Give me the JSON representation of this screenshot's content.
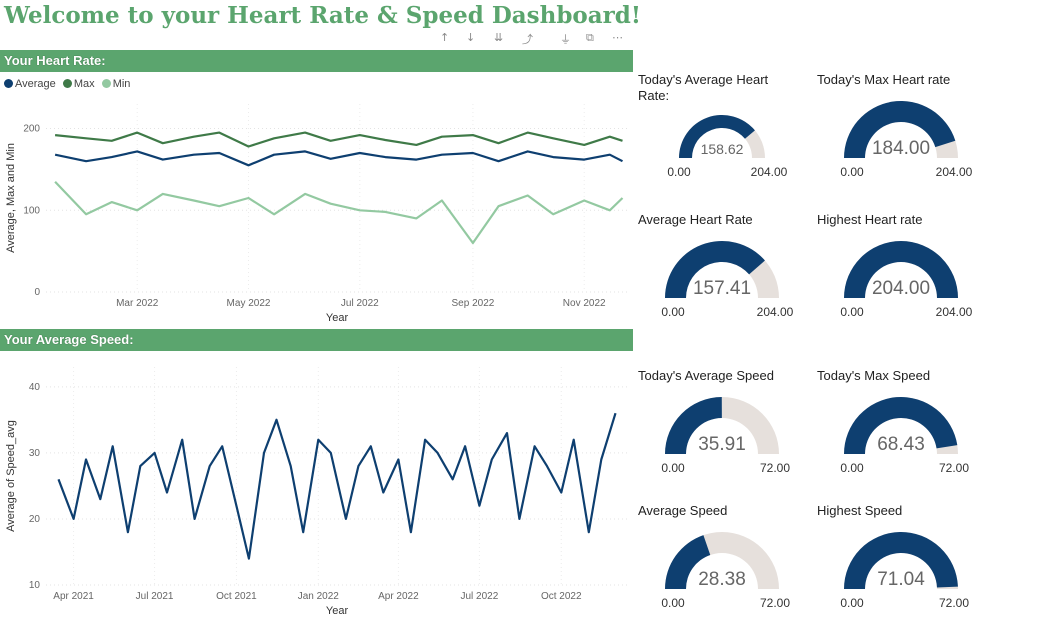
{
  "page": {
    "title": "Welcome to your Heart Rate & Speed Dashboard!"
  },
  "toolbar": {
    "icons": [
      "drill-up-icon",
      "drill-down-icon",
      "expand-all-icon",
      "expand-hierarchy-icon",
      "filter-icon",
      "focus-mode-icon",
      "more-options-icon"
    ],
    "glyphs": [
      "↑",
      "↓",
      "⇊",
      "⤴",
      "⏚",
      "⧉",
      "⋯"
    ]
  },
  "heart_section": {
    "label": "Your Heart Rate:"
  },
  "speed_section": {
    "label": "Your Average Speed:"
  },
  "colors": {
    "accent": "#5ba56e",
    "average": "#0e3f70",
    "max": "#3f7a48",
    "min": "#93c9a1",
    "gauge_fill": "#0e3f70",
    "gauge_track": "#e6e0dc"
  },
  "heart_chart": {
    "legend": [
      {
        "name": "Average",
        "color": "#0e3f70"
      },
      {
        "name": "Max",
        "color": "#3f7a48"
      },
      {
        "name": "Min",
        "color": "#93c9a1"
      }
    ]
  },
  "chart_data": [
    {
      "type": "line",
      "xlabel": "Year",
      "ylabel": "Average, Max and Min",
      "x_ticks": [
        "Mar 2022",
        "May 2022",
        "Jul 2022",
        "Sep 2022",
        "Nov 2022"
      ],
      "y_ticks": [
        0,
        100,
        200
      ],
      "ylim": [
        0,
        230
      ],
      "x_range": [
        "2022-01-10",
        "2022-11-25"
      ],
      "x": [
        "2022-01-15",
        "2022-02-01",
        "2022-02-15",
        "2022-03-01",
        "2022-03-15",
        "2022-04-01",
        "2022-04-15",
        "2022-05-01",
        "2022-05-15",
        "2022-06-01",
        "2022-06-15",
        "2022-07-01",
        "2022-07-15",
        "2022-08-01",
        "2022-08-15",
        "2022-09-01",
        "2022-09-15",
        "2022-10-01",
        "2022-10-15",
        "2022-11-01",
        "2022-11-15",
        "2022-11-22"
      ],
      "series": [
        {
          "name": "Average",
          "color": "#0e3f70",
          "values": [
            168,
            160,
            165,
            172,
            162,
            168,
            170,
            155,
            168,
            172,
            163,
            170,
            165,
            162,
            168,
            170,
            160,
            172,
            165,
            162,
            168,
            160
          ]
        },
        {
          "name": "Max",
          "color": "#3f7a48",
          "values": [
            192,
            188,
            185,
            195,
            182,
            190,
            195,
            178,
            188,
            195,
            185,
            192,
            186,
            180,
            190,
            192,
            182,
            195,
            188,
            180,
            190,
            185
          ]
        },
        {
          "name": "Min",
          "color": "#93c9a1",
          "values": [
            135,
            95,
            110,
            100,
            120,
            112,
            105,
            115,
            95,
            120,
            108,
            100,
            98,
            90,
            112,
            60,
            105,
            118,
            95,
            112,
            100,
            115
          ]
        }
      ],
      "grid": true,
      "legend": "top-left"
    },
    {
      "type": "line",
      "xlabel": "Year",
      "ylabel": "Average of Speed_avg",
      "x_ticks": [
        "Apr 2021",
        "Jul 2021",
        "Oct 2021",
        "Jan 2022",
        "Apr 2022",
        "Jul 2022",
        "Oct 2022"
      ],
      "y_ticks": [
        10,
        20,
        30,
        40
      ],
      "ylim": [
        10,
        43
      ],
      "x_range": [
        "2021-03-01",
        "2022-12-15"
      ],
      "x": [
        "2021-03-15",
        "2021-04-01",
        "2021-04-15",
        "2021-05-01",
        "2021-05-15",
        "2021-06-01",
        "2021-06-15",
        "2021-07-01",
        "2021-07-15",
        "2021-08-01",
        "2021-08-15",
        "2021-09-01",
        "2021-09-15",
        "2021-10-01",
        "2021-10-15",
        "2021-11-01",
        "2021-11-15",
        "2021-12-01",
        "2021-12-15",
        "2022-01-01",
        "2022-01-15",
        "2022-02-01",
        "2022-02-15",
        "2022-03-01",
        "2022-03-15",
        "2022-04-01",
        "2022-04-15",
        "2022-05-01",
        "2022-05-15",
        "2022-06-01",
        "2022-06-15",
        "2022-07-01",
        "2022-07-15",
        "2022-08-01",
        "2022-08-15",
        "2022-09-01",
        "2022-09-15",
        "2022-10-01",
        "2022-10-15",
        "2022-11-01",
        "2022-11-15",
        "2022-12-01"
      ],
      "series": [
        {
          "name": "Average of Speed_avg",
          "color": "#0e3f70",
          "values": [
            26,
            20,
            29,
            23,
            31,
            18,
            28,
            30,
            24,
            32,
            20,
            28,
            31,
            22,
            14,
            30,
            35,
            28,
            18,
            32,
            30,
            20,
            28,
            31,
            24,
            29,
            18,
            32,
            30,
            26,
            31,
            22,
            29,
            33,
            20,
            31,
            28,
            24,
            32,
            18,
            29,
            36
          ]
        }
      ],
      "grid": true
    }
  ],
  "gauges": [
    {
      "title": "Today's Average Heart Rate:",
      "value": 158.62,
      "value_label": "158.62",
      "min_label": "0.00",
      "max_label": "204.00",
      "max": 204,
      "size": "small"
    },
    {
      "title": "Today's Max Heart rate",
      "value": 184.0,
      "value_label": "184.00",
      "min_label": "0.00",
      "max_label": "204.00",
      "max": 204,
      "size": "large"
    },
    {
      "title": "Average Heart Rate",
      "value": 157.41,
      "value_label": "157.41",
      "min_label": "0.00",
      "max_label": "204.00",
      "max": 204,
      "size": "large"
    },
    {
      "title": "Highest Heart rate",
      "value": 204.0,
      "value_label": "204.00",
      "min_label": "0.00",
      "max_label": "204.00",
      "max": 204,
      "size": "large"
    },
    {
      "title": "Today's Average Speed",
      "value": 35.91,
      "value_label": "35.91",
      "min_label": "0.00",
      "max_label": "72.00",
      "max": 72,
      "size": "large"
    },
    {
      "title": "Today's Max Speed",
      "value": 68.43,
      "value_label": "68.43",
      "min_label": "0.00",
      "max_label": "72.00",
      "max": 72,
      "size": "large"
    },
    {
      "title": "Average Speed",
      "value": 28.38,
      "value_label": "28.38",
      "min_label": "0.00",
      "max_label": "72.00",
      "max": 72,
      "size": "large"
    },
    {
      "title": "Highest Speed",
      "value": 71.04,
      "value_label": "71.04",
      "min_label": "0.00",
      "max_label": "72.00",
      "max": 72,
      "size": "large"
    }
  ]
}
